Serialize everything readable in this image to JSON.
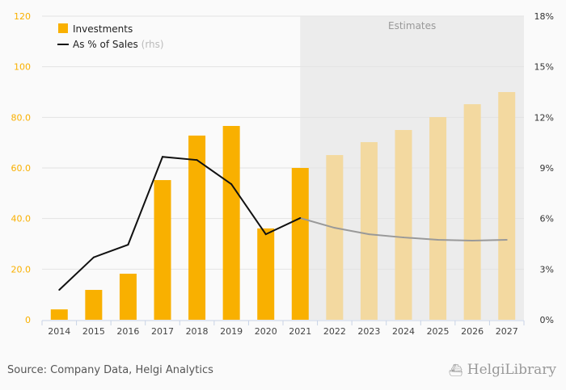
{
  "chart_data": {
    "type": "bar",
    "categories": [
      "2014",
      "2015",
      "2016",
      "2017",
      "2018",
      "2019",
      "2020",
      "2021",
      "2022",
      "2023",
      "2024",
      "2025",
      "2026",
      "2027"
    ],
    "series": [
      {
        "name": "Investments",
        "axis": "left",
        "type": "bar",
        "values": [
          4.1,
          11.8,
          18.2,
          55.2,
          72.8,
          76.6,
          36.1,
          60.0,
          65.1,
          70.2,
          75.0,
          80.1,
          85.2,
          90.0
        ]
      },
      {
        "name": "As % of Sales",
        "axis": "right",
        "type": "line",
        "values": [
          1.77,
          3.7,
          4.45,
          9.66,
          9.47,
          8.04,
          5.07,
          6.03,
          5.45,
          5.07,
          4.88,
          4.74,
          4.69,
          4.74
        ]
      }
    ],
    "estimate_start": "2022",
    "annotation": "Estimates",
    "legend": [
      "Investments",
      "As % of Sales"
    ],
    "legend_suffix": "(rhs)",
    "legend_placement": "top-left",
    "ylim": [
      0,
      120
    ],
    "y_ticks": [
      "0",
      "20.0",
      "40.0",
      "60.0",
      "80.0",
      "100",
      "120"
    ],
    "y2lim": [
      0,
      18
    ],
    "y2_ticks": [
      "0%",
      "3%",
      "6%",
      "9%",
      "12%",
      "15%",
      "18%"
    ],
    "colors": {
      "bar": "#f9b000",
      "bar_estimate": "#f3d9a0",
      "line": "#111111",
      "line_estimate": "#999999",
      "left_axis": "#f9b000",
      "shade": "#ececec"
    }
  },
  "footer": {
    "source": "Source: Company Data, Helgi Analytics",
    "logo": "HelgiLibrary"
  }
}
